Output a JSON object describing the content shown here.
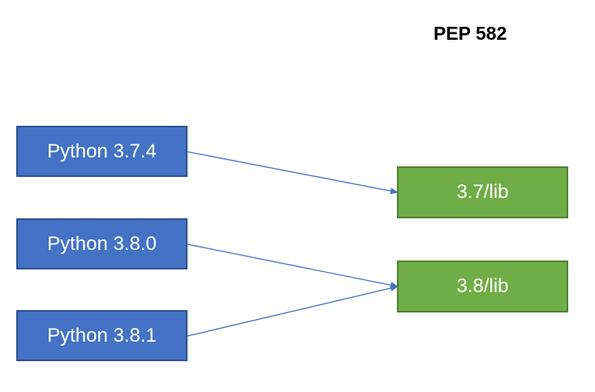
{
  "title": "PEP 582",
  "colors": {
    "python_box_fill": "#4472c4",
    "python_box_border": "#2f528f",
    "lib_box_fill": "#70ad47",
    "lib_box_border": "#507e32",
    "arrow": "#4472c4",
    "text": "#ffffff"
  },
  "python_versions": [
    {
      "label": "Python 3.7.4"
    },
    {
      "label": "Python 3.8.0"
    },
    {
      "label": "Python 3.8.1"
    }
  ],
  "lib_folders": [
    {
      "label": "3.7/lib"
    },
    {
      "label": "3.8/lib"
    }
  ],
  "links": [
    {
      "from": "Python 3.7.4",
      "to": "3.7/lib"
    },
    {
      "from": "Python 3.8.0",
      "to": "3.8/lib"
    },
    {
      "from": "Python 3.8.1",
      "to": "3.8/lib"
    }
  ]
}
